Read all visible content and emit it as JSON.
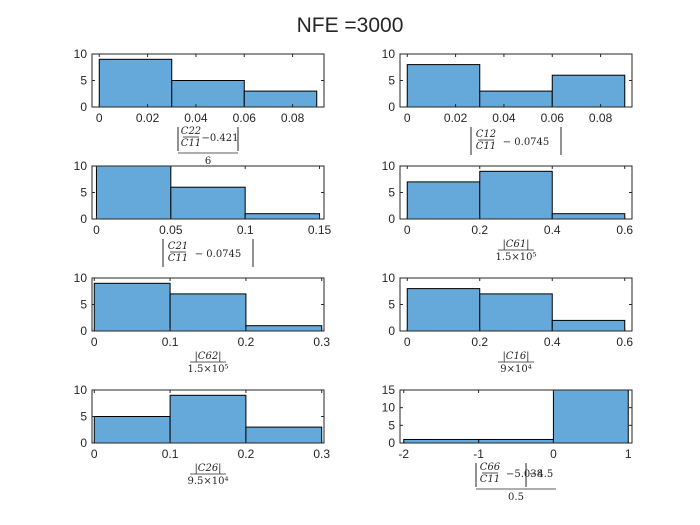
{
  "figure": {
    "title": "NFE =3000"
  },
  "chart_data": [
    {
      "type": "bar",
      "xlabel": "|C22/C11 - 0.421| / 6",
      "bin_edges": [
        0,
        0.03,
        0.06,
        0.09
      ],
      "values": [
        9,
        5,
        3
      ],
      "xlim": [
        -0.003,
        0.093
      ],
      "ylim": [
        0,
        10
      ],
      "xticks": [
        0,
        0.02,
        0.04,
        0.06,
        0.08
      ],
      "xtick_labels": [
        "0",
        "0.02",
        "0.04",
        "0.06",
        "0.08"
      ],
      "yticks": [
        0,
        5,
        10
      ],
      "ytick_labels": [
        "0",
        "5",
        "10"
      ],
      "grid": false
    },
    {
      "type": "bar",
      "xlabel": "|C12/C11 - 0.0745|",
      "bin_edges": [
        0,
        0.03,
        0.06,
        0.09
      ],
      "values": [
        8,
        3,
        6
      ],
      "xlim": [
        -0.003,
        0.093
      ],
      "ylim": [
        0,
        10
      ],
      "xticks": [
        0,
        0.02,
        0.04,
        0.06,
        0.08
      ],
      "xtick_labels": [
        "0",
        "0.02",
        "0.04",
        "0.06",
        "0.08"
      ],
      "yticks": [
        0,
        5,
        10
      ],
      "ytick_labels": [
        "0",
        "5",
        "10"
      ],
      "grid": false
    },
    {
      "type": "bar",
      "xlabel": "|C21/C11 - 0.0745|",
      "bin_edges": [
        0,
        0.05,
        0.1,
        0.15
      ],
      "values": [
        10,
        6,
        1
      ],
      "xlim": [
        -0.003,
        0.153
      ],
      "ylim": [
        0,
        10
      ],
      "xticks": [
        0,
        0.05,
        0.1,
        0.15
      ],
      "xtick_labels": [
        "0",
        "0.05",
        "0.1",
        "0.15"
      ],
      "yticks": [
        0,
        5,
        10
      ],
      "ytick_labels": [
        "0",
        "5",
        "10"
      ],
      "grid": false
    },
    {
      "type": "bar",
      "xlabel": "|C61| / 1.5×10^5",
      "bin_edges": [
        0,
        0.2,
        0.4,
        0.6
      ],
      "values": [
        7,
        9,
        1
      ],
      "xlim": [
        -0.02,
        0.62
      ],
      "ylim": [
        0,
        10
      ],
      "xticks": [
        0,
        0.2,
        0.4,
        0.6
      ],
      "xtick_labels": [
        "0",
        "0.2",
        "0.4",
        "0.6"
      ],
      "yticks": [
        0,
        5,
        10
      ],
      "ytick_labels": [
        "0",
        "5",
        "10"
      ],
      "grid": false
    },
    {
      "type": "bar",
      "xlabel": "|C62| / 1.5×10^5",
      "bin_edges": [
        0,
        0.1,
        0.2,
        0.3
      ],
      "values": [
        9,
        7,
        1
      ],
      "xlim": [
        -0.003,
        0.303
      ],
      "ylim": [
        0,
        10
      ],
      "xticks": [
        0,
        0.1,
        0.2,
        0.3
      ],
      "xtick_labels": [
        "0",
        "0.1",
        "0.2",
        "0.3"
      ],
      "yticks": [
        0,
        5,
        10
      ],
      "ytick_labels": [
        "0",
        "5",
        "10"
      ],
      "grid": false
    },
    {
      "type": "bar",
      "xlabel": "|C16| / 9×10^4",
      "bin_edges": [
        0,
        0.2,
        0.4,
        0.6
      ],
      "values": [
        8,
        7,
        2
      ],
      "xlim": [
        -0.02,
        0.62
      ],
      "ylim": [
        0,
        10
      ],
      "xticks": [
        0,
        0.2,
        0.4,
        0.6
      ],
      "xtick_labels": [
        "0",
        "0.2",
        "0.4",
        "0.6"
      ],
      "yticks": [
        0,
        5,
        10
      ],
      "ytick_labels": [
        "0",
        "5",
        "10"
      ],
      "grid": false
    },
    {
      "type": "bar",
      "xlabel": "|C26| / 9.5×10^4",
      "bin_edges": [
        0,
        0.1,
        0.2,
        0.3
      ],
      "values": [
        5,
        9,
        3
      ],
      "xlim": [
        -0.003,
        0.303
      ],
      "ylim": [
        0,
        10
      ],
      "xticks": [
        0,
        0.1,
        0.2,
        0.3
      ],
      "xtick_labels": [
        "0",
        "0.1",
        "0.2",
        "0.3"
      ],
      "yticks": [
        0,
        5,
        10
      ],
      "ytick_labels": [
        "0",
        "5",
        "10"
      ],
      "grid": false
    },
    {
      "type": "bar",
      "xlabel": "(|C66/C11 - 5.038| - 4.5) / 0.5",
      "bin_edges": [
        -2,
        -1,
        0,
        1
      ],
      "values": [
        1,
        1,
        15
      ],
      "xlim": [
        -2.05,
        1.05
      ],
      "ylim": [
        0,
        15
      ],
      "xticks": [
        -2,
        -1,
        0,
        1
      ],
      "xtick_labels": [
        "-2",
        "-1",
        "0",
        "1"
      ],
      "yticks": [
        0,
        5,
        10,
        15
      ],
      "ytick_labels": [
        "0",
        "5",
        "10",
        "15"
      ],
      "grid": false
    }
  ]
}
